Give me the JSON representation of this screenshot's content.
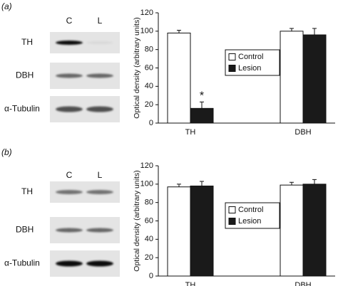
{
  "panels": [
    {
      "label": "(a)",
      "blot": {
        "lanes": [
          "C",
          "L"
        ],
        "rows": [
          "TH",
          "DBH",
          "α-Tubulin"
        ]
      }
    },
    {
      "label": "(b)",
      "blot": {
        "lanes": [
          "C",
          "L"
        ],
        "rows": [
          "TH",
          "DBH",
          "α-Tubulin"
        ]
      }
    }
  ],
  "chart_data": [
    {
      "type": "bar",
      "y_label": "Optical density (arbitrary units)",
      "categories": [
        "TH",
        "DBH"
      ],
      "series": [
        {
          "name": "Control",
          "color": "#ffffff",
          "values": [
            98,
            100
          ],
          "errors": [
            3,
            3
          ]
        },
        {
          "name": "Lesion",
          "color": "#1a1a1a",
          "values": [
            16,
            96
          ],
          "errors": [
            7,
            7
          ]
        }
      ],
      "annotations": [
        {
          "text": "*"
        }
      ],
      "ylim": [
        0,
        120
      ],
      "yticks": [
        0,
        20,
        40,
        60,
        80,
        100,
        120
      ],
      "legend": "center"
    },
    {
      "type": "bar",
      "y_label": "Optical density (arbitrary units)",
      "categories": [
        "TH",
        "DBH"
      ],
      "series": [
        {
          "name": "Control",
          "color": "#ffffff",
          "values": [
            97,
            99
          ],
          "errors": [
            3,
            3
          ]
        },
        {
          "name": "Lesion",
          "color": "#1a1a1a",
          "values": [
            98,
            100
          ],
          "errors": [
            5,
            5
          ]
        }
      ],
      "ylim": [
        0,
        120
      ],
      "yticks": [
        0,
        20,
        40,
        60,
        80,
        100,
        120
      ],
      "legend": "center"
    }
  ]
}
